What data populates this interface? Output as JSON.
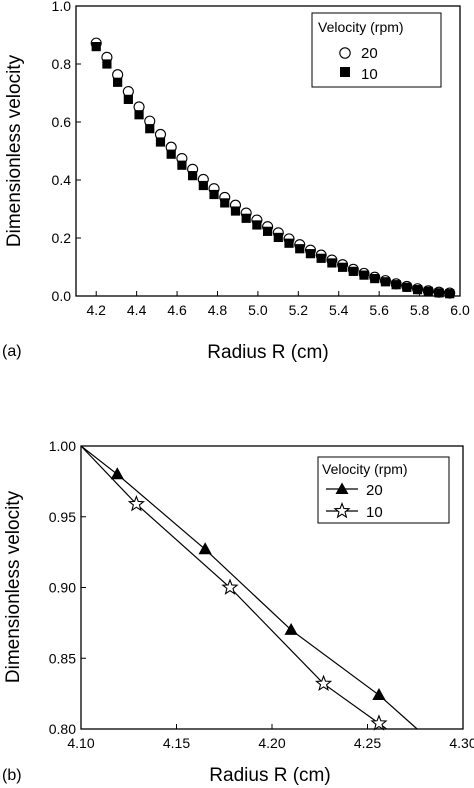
{
  "chart_data": [
    {
      "panel_label": "(a)",
      "type": "scatter",
      "title": "",
      "xlabel": "Radius R (cm)",
      "ylabel": "Dimensionless velocity",
      "xlim": [
        4.1,
        6.0
      ],
      "ylim": [
        0.0,
        1.0
      ],
      "xticks": [
        "4.2",
        "4.4",
        "4.6",
        "4.8",
        "5.0",
        "5.2",
        "5.4",
        "5.6",
        "5.8",
        "6.0"
      ],
      "yticks": [
        "0.0",
        "0.2",
        "0.4",
        "0.6",
        "0.8",
        "1.0"
      ],
      "grid": false,
      "legend": {
        "title": "Velocity (rpm)",
        "placement": "top-right"
      },
      "series": [
        {
          "name": "20",
          "marker": "open-circle",
          "x": [
            4.2,
            4.253,
            4.306,
            4.359,
            4.412,
            4.465,
            4.518,
            4.571,
            4.624,
            4.677,
            4.73,
            4.783,
            4.836,
            4.889,
            4.942,
            4.995,
            5.048,
            5.101,
            5.154,
            5.207,
            5.26,
            5.313,
            5.366,
            5.419,
            5.472,
            5.525,
            5.578,
            5.631,
            5.684,
            5.737,
            5.79,
            5.843,
            5.896,
            5.949
          ],
          "y": [
            0.872,
            0.823,
            0.763,
            0.705,
            0.652,
            0.603,
            0.557,
            0.513,
            0.474,
            0.437,
            0.402,
            0.37,
            0.34,
            0.313,
            0.286,
            0.262,
            0.239,
            0.218,
            0.197,
            0.177,
            0.158,
            0.141,
            0.124,
            0.108,
            0.092,
            0.078,
            0.065,
            0.053,
            0.042,
            0.033,
            0.025,
            0.018,
            0.013,
            0.01
          ]
        },
        {
          "name": "10",
          "marker": "filled-square",
          "x": [
            4.2,
            4.253,
            4.306,
            4.359,
            4.412,
            4.465,
            4.518,
            4.571,
            4.624,
            4.677,
            4.73,
            4.783,
            4.836,
            4.889,
            4.942,
            4.995,
            5.048,
            5.101,
            5.154,
            5.207,
            5.26,
            5.313,
            5.366,
            5.419,
            5.472,
            5.525,
            5.578,
            5.631,
            5.684,
            5.737,
            5.79,
            5.843,
            5.896,
            5.949
          ],
          "y": [
            0.86,
            0.8,
            0.737,
            0.678,
            0.625,
            0.577,
            0.531,
            0.489,
            0.451,
            0.415,
            0.381,
            0.35,
            0.321,
            0.293,
            0.268,
            0.245,
            0.223,
            0.202,
            0.182,
            0.163,
            0.146,
            0.13,
            0.114,
            0.099,
            0.085,
            0.072,
            0.06,
            0.049,
            0.039,
            0.03,
            0.022,
            0.016,
            0.011,
            0.008
          ]
        }
      ]
    },
    {
      "panel_label": "(b)",
      "type": "line",
      "title": "",
      "xlabel": "Radius R (cm)",
      "ylabel": "Dimensionless velocity",
      "xlim": [
        4.1,
        4.3
      ],
      "ylim": [
        0.8,
        1.0
      ],
      "xticks": [
        "4.10",
        "4.15",
        "4.20",
        "4.25",
        "4.30"
      ],
      "yticks": [
        "0.80",
        "0.85",
        "0.90",
        "0.95",
        "1.00"
      ],
      "grid": false,
      "legend": {
        "title": "Velocity (rpm)",
        "placement": "top-right"
      },
      "series": [
        {
          "name": "20",
          "marker": "filled-triangle",
          "x": [
            4.1,
            4.119,
            4.165,
            4.21,
            4.256,
            4.276
          ],
          "y": [
            1.0,
            0.98,
            0.927,
            0.87,
            0.824,
            0.8
          ],
          "marked": [
            false,
            true,
            true,
            true,
            true,
            false
          ]
        },
        {
          "name": "10",
          "marker": "open-star",
          "x": [
            4.1,
            4.129,
            4.178,
            4.227,
            4.256,
            4.26
          ],
          "y": [
            1.0,
            0.959,
            0.9,
            0.832,
            0.804,
            0.8
          ],
          "marked": [
            false,
            true,
            true,
            true,
            true,
            false
          ]
        }
      ]
    }
  ]
}
